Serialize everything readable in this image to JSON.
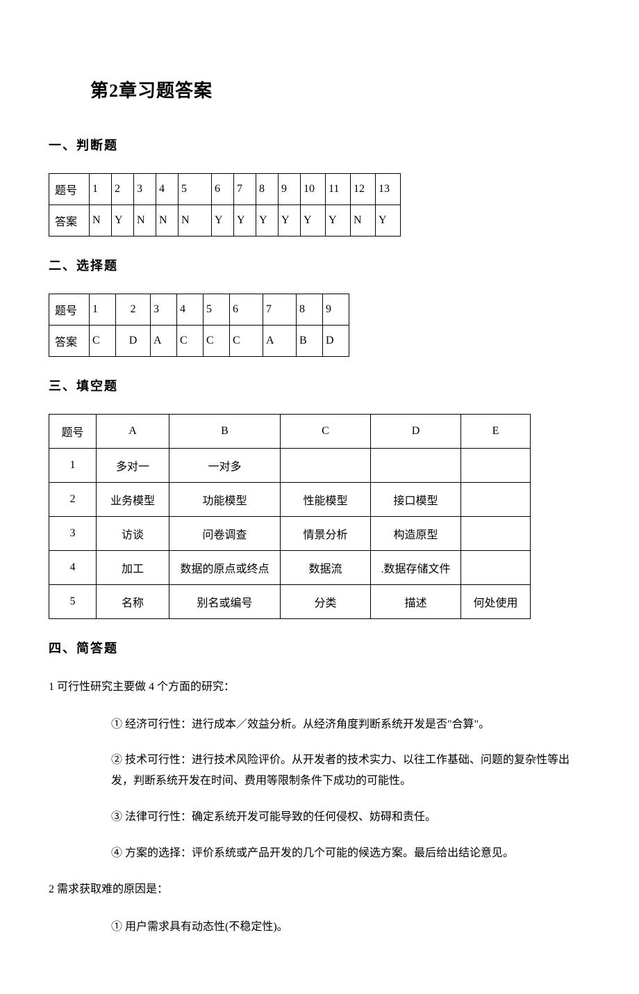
{
  "title": "第2章习题答案",
  "sections": {
    "s1": "一、判断题",
    "s2": "二、选择题",
    "s3": "三、填空题",
    "s4": "四、简答题"
  },
  "table1": {
    "header": [
      "题号",
      "1",
      "2",
      "3",
      "4",
      "5",
      "6",
      "7",
      "8",
      "9",
      "10",
      "11",
      "12",
      "13"
    ],
    "row": [
      "答案",
      "N",
      "Y",
      "N",
      "N",
      "N",
      "Y",
      "Y",
      "Y",
      "Y",
      "Y",
      "Y",
      "N",
      "Y"
    ]
  },
  "table2": {
    "header": [
      "题号",
      "1",
      "2",
      "3",
      "4",
      "5",
      "6",
      "7",
      "8",
      "9"
    ],
    "row": [
      "答案",
      "C",
      "D",
      "A",
      "C",
      "C",
      "C",
      "A",
      "B",
      "D"
    ]
  },
  "table3": {
    "header": [
      "题号",
      "A",
      "B",
      "C",
      "D",
      "E"
    ],
    "rows": [
      [
        "1",
        "多对一",
        "一对多",
        "",
        "",
        ""
      ],
      [
        "2",
        "业务模型",
        "功能模型",
        "性能模型",
        "接口模型",
        ""
      ],
      [
        "3",
        "访谈",
        "问卷调查",
        "情景分析",
        "构造原型",
        ""
      ],
      [
        "4",
        "加工",
        "数据的原点或终点",
        "数据流",
        ".数据存储文件",
        ""
      ],
      [
        "5",
        "名称",
        "别名或编号",
        "分类",
        "描述",
        "何处使用"
      ]
    ]
  },
  "qa": {
    "q1": "1  可行性研究主要做 4 个方面的研究：",
    "q1a": "① 经济可行性：进行成本／效益分析。从经济角度判断系统开发是否\"合算\"。",
    "q1b": "② 技术可行性：进行技术风险评价。从开发者的技术实力、以往工作基础、问题的复杂性等出发，判断系统开发在时间、费用等限制条件下成功的可能性。",
    "q1c": "③ 法律可行性：确定系统开发可能导致的任何侵权、妨碍和责任。",
    "q1d": "④ 方案的选择：评价系统或产品开发的几个可能的候选方案。最后给出结论意见。",
    "q2": "2  需求获取难的原因是：",
    "q2a": "①  用户需求具有动态性(不稳定性)。"
  }
}
